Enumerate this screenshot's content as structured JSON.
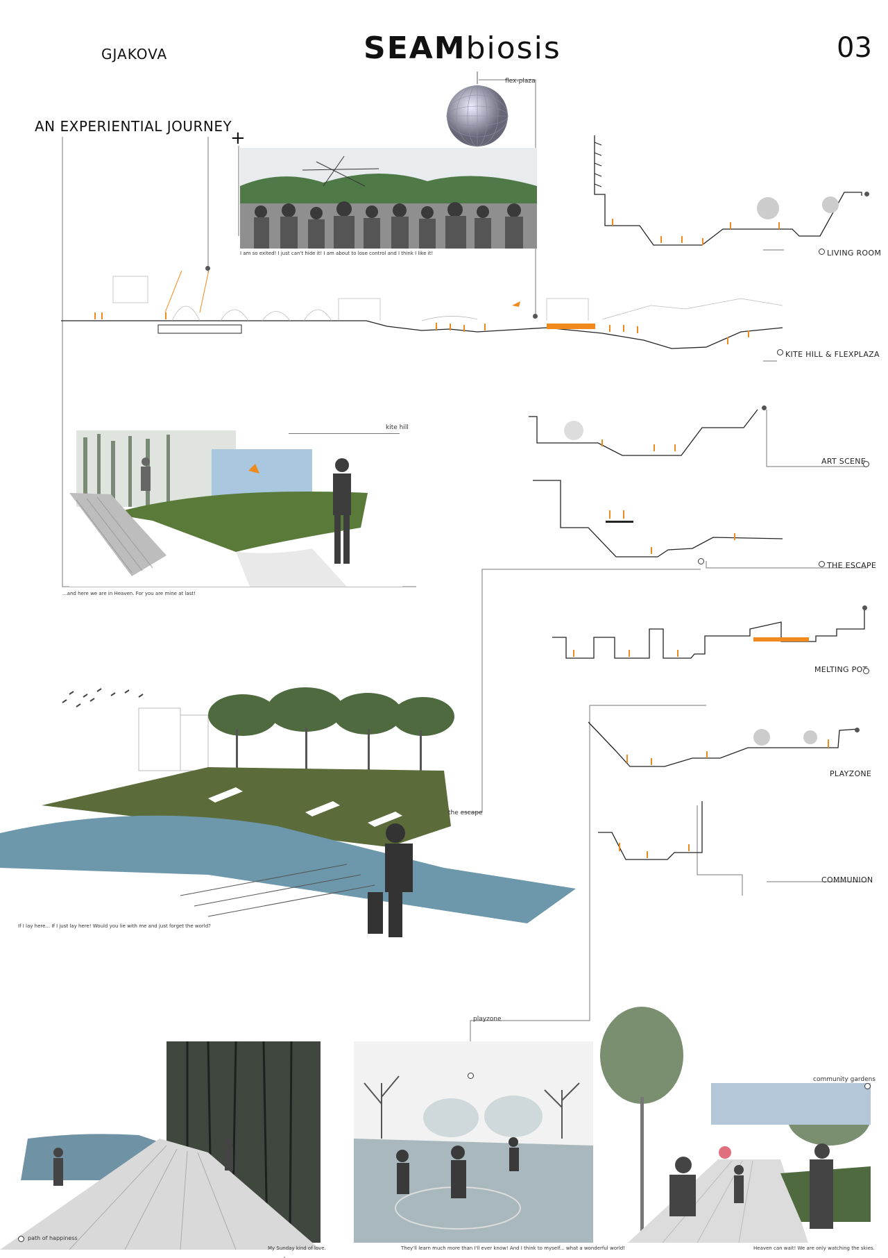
{
  "header": {
    "city": "GJAKOVA",
    "title_bold": "SEAM",
    "title_light": "biosis",
    "page_number": "03"
  },
  "journey_title": "AN EXPERIENTIAL JOURNEY",
  "section_labels": {
    "living_room": "LIVING ROOM",
    "kite_hill_flexplaza": "KITE HILL & FLEXPLAZA",
    "art_scene": "ART SCENE",
    "the_escape": "THE ESCAPE",
    "melting_pot": "MELTING POT",
    "playzone": "PLAYZONE",
    "communion": "COMMUNION"
  },
  "photo_labels": {
    "flex_plaza": "flex-plaza",
    "kite_hill": "kite hill",
    "the_escape": "the escape",
    "playzone": "playzone",
    "community_gardens": "community gardens",
    "path_of_happiness": "path of happiness"
  },
  "captions": {
    "flex_plaza": "I am so exited! I just can't hide it! I am about to lose control and I think I like it!",
    "kite_hill": "...and here we are in Heaven. For you are mine at last!",
    "the_escape": "If I lay here... If I just lay here! Would you lie with me and just forget the world?",
    "path_of_happiness": "My Sunday kind of love.",
    "playzone": "They'll learn much more than I'll ever know! And I think to myself... what a wonderful world!",
    "community_gardens": "Heaven can wait! We are only watching the skies."
  },
  "colors": {
    "accent_orange": "#f08a1c",
    "line": "#555555",
    "grass": "#5a7a3a",
    "water": "#6d97aa"
  }
}
